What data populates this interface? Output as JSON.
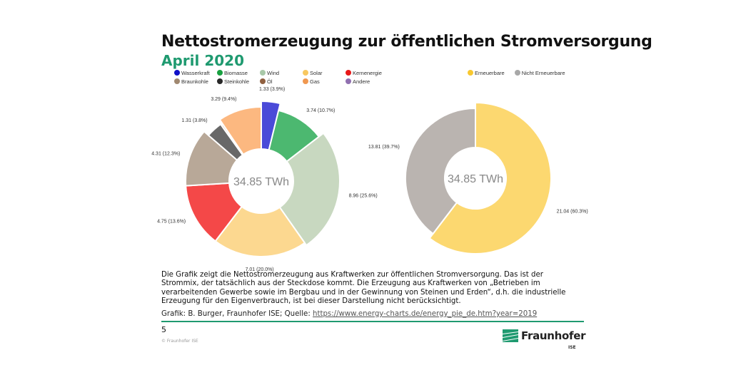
{
  "slide": {
    "title": "Nettostromerzeugung zur öffentlichen Stromversorgung",
    "subtitle": "April 2020",
    "accent_color": "#1f9a70",
    "description": "Die Grafik zeigt die Nettostromerzeugung aus Kraftwerken zur öffentlichen Stromversorgung. Das ist der Strommix, der tatsächlich aus der Steckdose kommt. Die Erzeugung aus Kraftwerken von „Betrieben im verarbeitenden Gewerbe sowie im Bergbau und in der Gewinnung von Steinen und Erden“, d.h. die industrielle Erzeugung für den Eigenverbrauch, ist bei dieser Darstellung nicht berücksichtigt.",
    "source_prefix": "Grafik: B. Burger, Fraunhofer ISE; Quelle: ",
    "source_link": "https://www.energy-charts.de/energy_pie_de.htm?year=2019",
    "page_number": "5",
    "copyright": "© Fraunhofer ISE",
    "logo_name": "Fraunhofer",
    "logo_sub": "ISE"
  },
  "chart_data": [
    {
      "type": "pie",
      "variant": "donut",
      "center_label": "34.85 TWh",
      "unit": "TWh",
      "legend_position": "top",
      "legend": [
        {
          "name": "Wasserkraft",
          "color": "#1010c8"
        },
        {
          "name": "Biomasse",
          "color": "#18a040"
        },
        {
          "name": "Wind",
          "color": "#a8c8a8"
        },
        {
          "name": "Solar",
          "color": "#f8c860"
        },
        {
          "name": "Kernenergie",
          "color": "#e81818"
        },
        {
          "name": "Braunkohle",
          "color": "#a08870"
        },
        {
          "name": "Steinkohle",
          "color": "#282828"
        },
        {
          "name": "Öl",
          "color": "#906040"
        },
        {
          "name": "Gas",
          "color": "#f09850"
        },
        {
          "name": "Andere",
          "color": "#9070b0"
        }
      ],
      "slices": [
        {
          "name": "Wasserkraft",
          "value": 1.33,
          "percent": 3.9,
          "label": "1.33 (3.9%)",
          "color": "#4a4ad8"
        },
        {
          "name": "Biomasse",
          "value": 3.74,
          "percent": 10.7,
          "label": "3.74 (10.7%)",
          "color": "#4cb870"
        },
        {
          "name": "Wind",
          "value": 8.96,
          "percent": 25.6,
          "label": "8.96 (25.6%)",
          "color": "#c8d8c0"
        },
        {
          "name": "Solar",
          "value": 7.01,
          "percent": 20.0,
          "label": "7.01 (20.0%)",
          "color": "#fcd890"
        },
        {
          "name": "Kernenergie",
          "value": 4.75,
          "percent": 13.6,
          "label": "4.75 (13.6%)",
          "color": "#f44848"
        },
        {
          "name": "Braunkohle",
          "value": 4.31,
          "percent": 12.3,
          "label": "4.31 (12.3%)",
          "color": "#b8a898"
        },
        {
          "name": "Steinkohle",
          "value": 1.31,
          "percent": 3.8,
          "label": "1.31 (3.8%)",
          "color": "#686868"
        },
        {
          "name": "Öl",
          "value": 0.15,
          "percent": 0.4,
          "label": "",
          "color": "#c8b8a8"
        },
        {
          "name": "Gas",
          "value": 3.29,
          "percent": 9.4,
          "label": "3.29 (9.4%)",
          "color": "#fcb880"
        }
      ]
    },
    {
      "type": "pie",
      "variant": "donut",
      "center_label": "34.85 TWh",
      "unit": "TWh",
      "legend_position": "top",
      "legend": [
        {
          "name": "Erneuerbare",
          "color": "#f8c830"
        },
        {
          "name": "Nicht Erneuerbare",
          "color": "#a8a8a8"
        }
      ],
      "slices": [
        {
          "name": "Erneuerbare",
          "value": 21.04,
          "percent": 60.3,
          "label": "21.04 (60.3%)",
          "color": "#fcd870"
        },
        {
          "name": "Nicht Erneuerbare",
          "value": 13.81,
          "percent": 39.7,
          "label": "13.81 (39.7%)",
          "color": "#bab4b0"
        }
      ]
    }
  ]
}
